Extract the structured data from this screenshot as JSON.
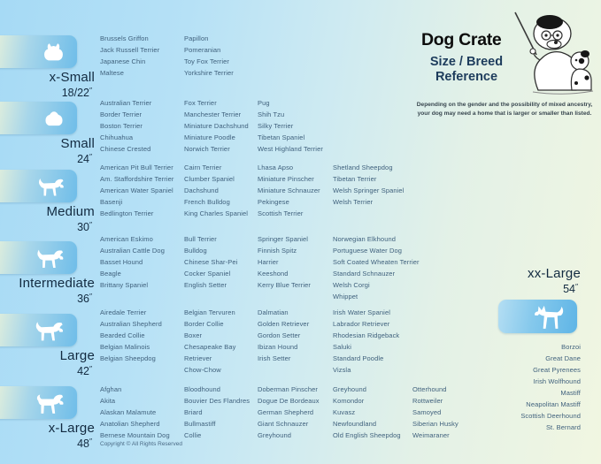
{
  "header": {
    "title": "Dog Crate",
    "subtitle_line1": "Size / Breed",
    "subtitle_line2": "Reference",
    "note_line1": "Depending on the gender and the possibility of mixed ancestry,",
    "note_line2": "your dog may need a home that is larger or smaller than listed."
  },
  "unit_mark": "″",
  "sizes": [
    {
      "label": "x-Small",
      "dimension": "18/22",
      "columns": [
        [
          "Brussels Griffon",
          "Jack Russell Terrier",
          "Japanese Chin",
          "Maltese"
        ],
        [
          "Papillon",
          "Pomeranian",
          "Toy Fox Terrier",
          "Yorkshire Terrier"
        ]
      ]
    },
    {
      "label": "Small",
      "dimension": "24",
      "columns": [
        [
          "Australian Terrier",
          "Border Terrier",
          "Boston Terrier",
          "Chihuahua",
          "Chinese Crested"
        ],
        [
          "Fox Terrier",
          "Manchester Terrier",
          "Miniature Dachshund",
          "Miniature Poodle",
          "Norwich Terrier"
        ],
        [
          "Pug",
          "Shih Tzu",
          "Silky Terrier",
          "Tibetan Spaniel",
          "West Highland Terrier"
        ]
      ]
    },
    {
      "label": "Medium",
      "dimension": "30",
      "columns": [
        [
          "American Pit Bull Terrier",
          "Am. Staffordshire Terrier",
          "American Water Spaniel",
          "Basenji",
          "Bedlington Terrier"
        ],
        [
          "Cairn Terrier",
          "Clumber Spaniel",
          "Dachshund",
          "French Bulldog",
          "King Charles Spaniel"
        ],
        [
          "Lhasa Apso",
          "Miniature Pinscher",
          "Miniature Schnauzer",
          "Pekingese",
          "Scottish Terrier"
        ],
        [
          "Shetland Sheepdog",
          "Tibetan Terrier",
          "Welsh Springer Spaniel",
          "Welsh Terrier"
        ]
      ]
    },
    {
      "label": "Intermediate",
      "dimension": "36",
      "columns": [
        [
          "American Eskimo",
          "Australian Cattle Dog",
          "Basset Hound",
          "Beagle",
          "Brittany Spaniel"
        ],
        [
          "Bull Terrier",
          "Bulldog",
          "Chinese Shar-Pei",
          "Cocker Spaniel",
          "English Setter"
        ],
        [
          "Springer Spaniel",
          "Finnish Spitz",
          "Harrier",
          "Keeshond",
          "Kerry Blue Terrier"
        ],
        [
          "Norwegian Elkhound",
          "Portuguese Water Dog",
          "Soft Coated Wheaten Terrier",
          "Standard Schnauzer",
          "Welsh Corgi",
          "Whippet"
        ]
      ]
    },
    {
      "label": "Large",
      "dimension": "42",
      "columns": [
        [
          "Airedale Terrier",
          "Australian Shepherd",
          "Bearded Collie",
          "Belgian Malinois",
          "Belgian Sheepdog"
        ],
        [
          "Belgian Tervuren",
          "Border Collie",
          "Boxer",
          "Chesapeake Bay Retriever",
          "Chow-Chow"
        ],
        [
          "Dalmatian",
          "Golden Retriever",
          "Gordon Setter",
          "Ibizan Hound",
          "Irish Setter"
        ],
        [
          "Irish Water Spaniel",
          "Labrador Retriever",
          "Rhodesian Ridgeback",
          "Saluki",
          "Standard Poodle",
          "Vizsla"
        ]
      ]
    },
    {
      "label": "x-Large",
      "dimension": "48",
      "columns": [
        [
          "Afghan",
          "Akita",
          "Alaskan Malamute",
          "Anatolian Shepherd",
          "Bernese Mountain Dog"
        ],
        [
          "Bloodhound",
          "Bouvier Des Flandres",
          "Briard",
          "Bullmastiff",
          "Collie"
        ],
        [
          "Doberman Pinscher",
          "Dogue De Bordeaux",
          "German Shepherd",
          "Giant Schnauzer",
          "Greyhound"
        ],
        [
          "Greyhound",
          "Komondor",
          "Kuvasz",
          "Newfoundland",
          "Old English Sheepdog"
        ],
        [
          "Otterhound",
          "Rottweiler",
          "Samoyed",
          "Siberian Husky",
          "Weimaraner"
        ]
      ]
    }
  ],
  "xx_large": {
    "label": "xx-Large",
    "dimension": "54",
    "breeds": [
      "Borzoi",
      "Great Dane",
      "Great Pyrenees",
      "Irish Wolfhound",
      "Mastiff",
      "Neapolitan Mastiff",
      "Scottish Deerhound",
      "St. Bernard"
    ]
  },
  "footer": {
    "copyright": "Copyright © All Rights Reserved"
  },
  "icons": {
    "x_small": "toy-dog-silhouette",
    "small": "shih-tzu-silhouette",
    "medium": "terrier-silhouette",
    "intermediate": "spaniel-silhouette",
    "large": "retriever-silhouette",
    "x_large": "akita-silhouette",
    "xx_large": "great-dane-silhouette",
    "illustration": "teacher-dog-with-puppy"
  },
  "colors": {
    "background_left": "#a6daf5",
    "background_right": "#f1f6e1",
    "badge_blue": "#6fbde9",
    "badge_cream": "#f0f5d8",
    "label_navy": "#122a40",
    "breed_text": "#3f607c"
  }
}
